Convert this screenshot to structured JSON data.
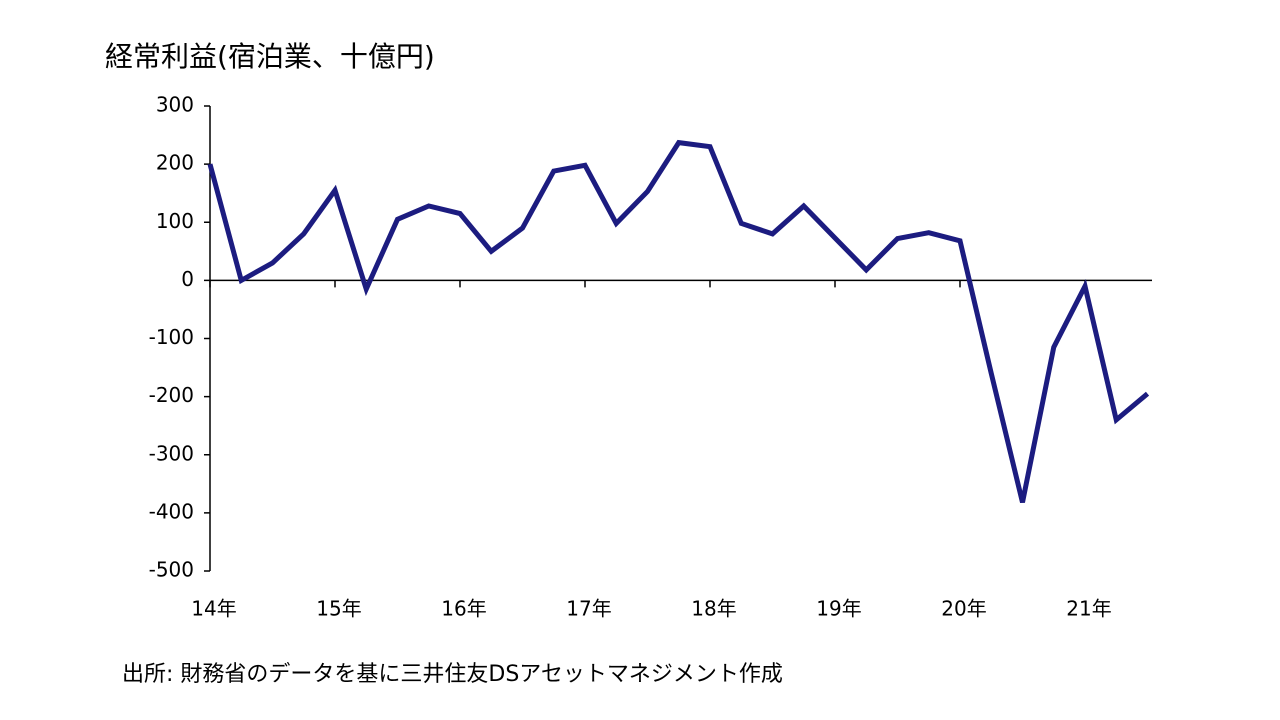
{
  "chart_data": {
    "type": "line",
    "title": "経常利益(宿泊業、十億円)",
    "categories": [
      "14年",
      null,
      null,
      null,
      "15年",
      null,
      null,
      null,
      "16年",
      null,
      null,
      null,
      "17年",
      null,
      null,
      null,
      "18年",
      null,
      null,
      null,
      "19年",
      null,
      null,
      null,
      "20年",
      null,
      null,
      null,
      "21年",
      null,
      null
    ],
    "series": [
      {
        "name": "経常利益",
        "color": "#1c1c80",
        "values": [
          200,
          0,
          30,
          80,
          155,
          -15,
          105,
          128,
          115,
          50,
          90,
          188,
          198,
          98,
          153,
          237,
          230,
          98,
          80,
          128,
          73,
          18,
          72,
          82,
          68,
          -160,
          -382,
          -115,
          -10,
          -240,
          -195
        ]
      }
    ],
    "ylim": [
      -500,
      300
    ],
    "yticks": [
      -500,
      -400,
      -300,
      -200,
      -100,
      0,
      100,
      200,
      300
    ],
    "note": "出所: 財務省のデータを基に三井住友DSアセットマネジメント作成"
  }
}
